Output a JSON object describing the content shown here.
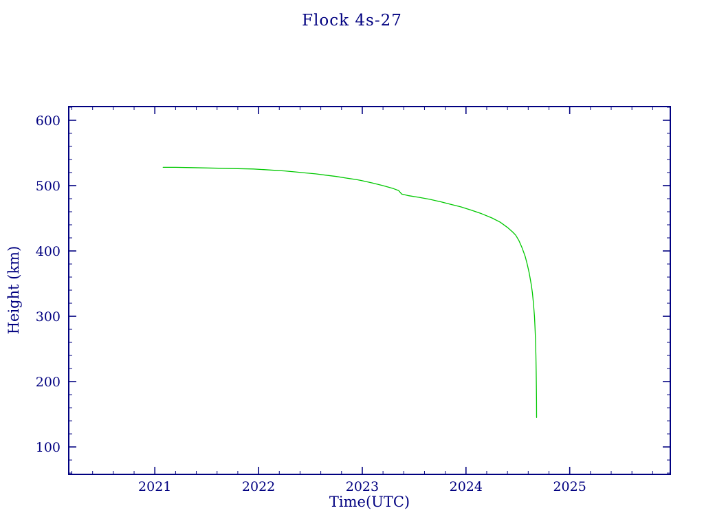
{
  "colors": {
    "axis": "#000080",
    "line": "#00c800",
    "background": "#ffffff"
  },
  "chart_data": {
    "type": "line",
    "title": "Flock 4s-27",
    "xlabel": "Time(UTC)",
    "ylabel": "Height (km)",
    "xlim": [
      2020.17,
      2025.97
    ],
    "ylim": [
      58,
      621
    ],
    "xticks": [
      2021,
      2022,
      2023,
      2024,
      2025
    ],
    "yticks": [
      100,
      200,
      300,
      400,
      500,
      600
    ],
    "x_minor_step": 0.2,
    "y_minor_step": 20,
    "grid": false,
    "legend_position": "none",
    "series": [
      {
        "name": "Flock 4s-27 height",
        "color": "#00c800",
        "points": [
          [
            2021.08,
            528
          ],
          [
            2021.2,
            528
          ],
          [
            2021.35,
            527.5
          ],
          [
            2021.5,
            527
          ],
          [
            2021.65,
            526.5
          ],
          [
            2021.8,
            526
          ],
          [
            2021.95,
            525.5
          ],
          [
            2022.05,
            524.5
          ],
          [
            2022.15,
            523.5
          ],
          [
            2022.25,
            522.5
          ],
          [
            2022.35,
            521
          ],
          [
            2022.45,
            519.5
          ],
          [
            2022.55,
            518
          ],
          [
            2022.65,
            516
          ],
          [
            2022.75,
            514
          ],
          [
            2022.85,
            511.5
          ],
          [
            2022.95,
            509
          ],
          [
            2023.0,
            507.5
          ],
          [
            2023.1,
            504
          ],
          [
            2023.2,
            500
          ],
          [
            2023.3,
            495.5
          ],
          [
            2023.35,
            492.5
          ],
          [
            2023.38,
            487
          ],
          [
            2023.45,
            484.5
          ],
          [
            2023.55,
            482
          ],
          [
            2023.65,
            479
          ],
          [
            2023.75,
            475.5
          ],
          [
            2023.85,
            471.5
          ],
          [
            2023.95,
            467.5
          ],
          [
            2024.05,
            462.5
          ],
          [
            2024.15,
            457
          ],
          [
            2024.25,
            450.5
          ],
          [
            2024.33,
            444
          ],
          [
            2024.4,
            436
          ],
          [
            2024.45,
            429
          ],
          [
            2024.48,
            424
          ],
          [
            2024.51,
            416
          ],
          [
            2024.54,
            405
          ],
          [
            2024.57,
            392
          ],
          [
            2024.59,
            380
          ],
          [
            2024.61,
            366
          ],
          [
            2024.63,
            348
          ],
          [
            2024.64,
            336
          ],
          [
            2024.65,
            320
          ],
          [
            2024.66,
            300
          ],
          [
            2024.665,
            285
          ],
          [
            2024.67,
            265
          ],
          [
            2024.674,
            240
          ],
          [
            2024.677,
            215
          ],
          [
            2024.679,
            190
          ],
          [
            2024.68,
            170
          ],
          [
            2024.681,
            145
          ]
        ]
      }
    ]
  }
}
